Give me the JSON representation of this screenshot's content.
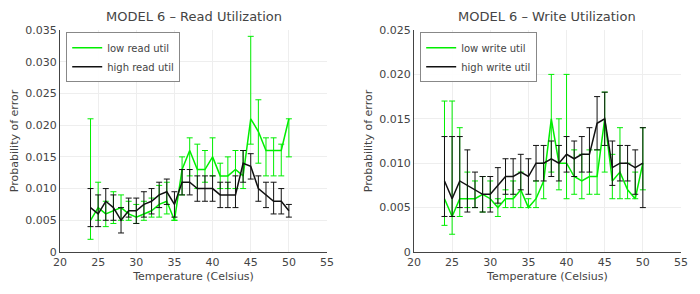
{
  "chart_data": [
    {
      "type": "line",
      "title": "MODEL 6 – Read Utilization",
      "x_label": "Temperature (Celsius)",
      "y_label": "Probability of error",
      "x": [
        24,
        25,
        26,
        27,
        28,
        29,
        30,
        31,
        32,
        33,
        34,
        35,
        36,
        37,
        38,
        39,
        40,
        41,
        42,
        43,
        44,
        45,
        46,
        47,
        48,
        49,
        50
      ],
      "series": [
        {
          "name": "low read util",
          "color": "#00ee00",
          "values": [
            0.005,
            0.007,
            0.006,
            0.0065,
            0.007,
            0.006,
            0.0055,
            0.006,
            0.0065,
            0.0075,
            0.008,
            0.005,
            0.013,
            0.016,
            0.013,
            0.013,
            0.015,
            0.012,
            0.012,
            0.013,
            0.012,
            0.021,
            0.019,
            0.016,
            0.016,
            0.016,
            0.021
          ],
          "yerr_lo": [
            0.003,
            0.002,
            0.002,
            0.002,
            0.002,
            0.001,
            0.001,
            0.001,
            0.001,
            0.002,
            0.002,
            0.0,
            0.004,
            0.004,
            0.003,
            0.002,
            0.003,
            0.002,
            0.002,
            0.003,
            0.002,
            0.004,
            0.005,
            0.004,
            0.004,
            0.004,
            0.006
          ],
          "yerr_hi": [
            0.016,
            0.004,
            0.002,
            0.003,
            0.002,
            0.002,
            0.002,
            0.002,
            0.002,
            0.003,
            0.003,
            0.0,
            0.002,
            0.002,
            0.004,
            0.003,
            0.003,
            0.002,
            0.003,
            0.003,
            0.004,
            0.013,
            0.005,
            0.002,
            0.002,
            0.001,
            0.0
          ]
        },
        {
          "name": "high read util",
          "color": "#111111",
          "values": [
            0.007,
            0.006,
            0.008,
            0.007,
            0.005,
            0.0065,
            0.0065,
            0.0075,
            0.008,
            0.009,
            0.0095,
            0.0075,
            0.011,
            0.011,
            0.01,
            0.01,
            0.01,
            0.009,
            0.009,
            0.009,
            0.014,
            0.0135,
            0.01,
            0.009,
            0.008,
            0.008,
            0.0065
          ],
          "yerr_lo": [
            0.003,
            0.002,
            0.003,
            0.002,
            0.002,
            0.001,
            0.002,
            0.002,
            0.002,
            0.002,
            0.002,
            0.002,
            0.002,
            0.002,
            0.002,
            0.002,
            0.002,
            0.002,
            0.002,
            0.002,
            0.003,
            0.002,
            0.002,
            0.002,
            0.002,
            0.002,
            0.001
          ],
          "yerr_hi": [
            0.003,
            0.003,
            0.002,
            0.002,
            0.002,
            0.002,
            0.002,
            0.002,
            0.002,
            0.002,
            0.002,
            0.002,
            0.002,
            0.002,
            0.002,
            0.002,
            0.002,
            0.002,
            0.002,
            0.003,
            0.002,
            0.002,
            0.002,
            0.002,
            0.003,
            0.002,
            0.001
          ]
        }
      ],
      "xlim": [
        20,
        55
      ],
      "xticks": [
        20,
        25,
        30,
        35,
        40,
        45,
        50,
        55
      ],
      "ylim": [
        0,
        0.035
      ],
      "yticks": [
        0,
        0.005,
        {
          "value": 0.01,
          "label": "0.010"
        },
        0.015,
        {
          "value": 0.02,
          "label": "0.020"
        },
        0.025,
        {
          "value": 0.03,
          "label": "0.030"
        },
        0.035
      ],
      "grid": true,
      "legend": "upper left"
    },
    {
      "type": "line",
      "title": "MODEL 6 – Write Utilization",
      "x_label": "Temperature (Celsius)",
      "y_label": "Probability of error",
      "x": [
        24,
        25,
        26,
        27,
        28,
        29,
        30,
        31,
        32,
        33,
        34,
        35,
        36,
        37,
        38,
        39,
        40,
        41,
        42,
        43,
        44,
        45,
        46,
        47,
        48,
        49,
        50
      ],
      "series": [
        {
          "name": "low write util",
          "color": "#00ee00",
          "values": [
            0.006,
            0.004,
            0.006,
            0.006,
            0.006,
            0.0065,
            0.006,
            0.005,
            0.006,
            0.006,
            0.007,
            0.005,
            0.006,
            0.008,
            0.015,
            0.01,
            0.01,
            0.0085,
            0.008,
            0.0085,
            0.0085,
            0.015,
            0.008,
            0.009,
            0.007,
            0.006,
            0.01
          ],
          "yerr_lo": [
            0.003,
            0.002,
            0.002,
            0.001,
            0.001,
            0.002,
            0.001,
            0.001,
            0.001,
            0.001,
            0.002,
            0.0,
            0.001,
            0.002,
            0.006,
            0.003,
            0.004,
            0.002,
            0.002,
            0.002,
            0.002,
            0.006,
            0.002,
            0.003,
            0.001,
            0.0,
            0.003
          ],
          "yerr_hi": [
            0.011,
            0.013,
            0.008,
            0.003,
            0.002,
            0.002,
            0.002,
            0.001,
            0.001,
            0.002,
            0.002,
            0.001,
            0.002,
            0.002,
            0.005,
            0.005,
            0.01,
            0.003,
            0.003,
            0.003,
            0.003,
            0.003,
            0.003,
            0.005,
            0.003,
            0.003,
            0.004
          ]
        },
        {
          "name": "high write util",
          "color": "#111111",
          "values": [
            0.008,
            0.006,
            0.008,
            0.0075,
            0.007,
            0.0065,
            0.0065,
            0.0075,
            0.0085,
            0.0085,
            0.009,
            0.0085,
            0.01,
            0.01,
            0.0105,
            0.01,
            0.011,
            0.0105,
            0.011,
            0.011,
            0.0145,
            0.015,
            0.0095,
            0.01,
            0.01,
            0.0095,
            0.01
          ],
          "yerr_lo": [
            0.004,
            0.002,
            0.003,
            0.003,
            0.002,
            0.002,
            0.002,
            0.002,
            0.002,
            0.002,
            0.002,
            0.002,
            0.002,
            0.002,
            0.002,
            0.002,
            0.002,
            0.002,
            0.002,
            0.002,
            0.003,
            0.003,
            0.002,
            0.002,
            0.002,
            0.003,
            0.005
          ],
          "yerr_hi": [
            0.005,
            0.007,
            0.005,
            0.004,
            0.002,
            0.002,
            0.002,
            0.002,
            0.002,
            0.002,
            0.002,
            0.002,
            0.002,
            0.002,
            0.002,
            0.002,
            0.002,
            0.002,
            0.002,
            0.003,
            0.003,
            0.003,
            0.003,
            0.002,
            0.002,
            0.002,
            0.004
          ]
        }
      ],
      "xlim": [
        20,
        55
      ],
      "xticks": [
        20,
        25,
        30,
        35,
        40,
        45,
        50,
        55
      ],
      "ylim": [
        0,
        0.025
      ],
      "yticks": [
        0,
        0.005,
        {
          "value": 0.01,
          "label": "0.010"
        },
        0.015,
        {
          "value": 0.02,
          "label": "0.020"
        },
        0.025
      ],
      "grid": true,
      "legend": "upper left"
    }
  ]
}
